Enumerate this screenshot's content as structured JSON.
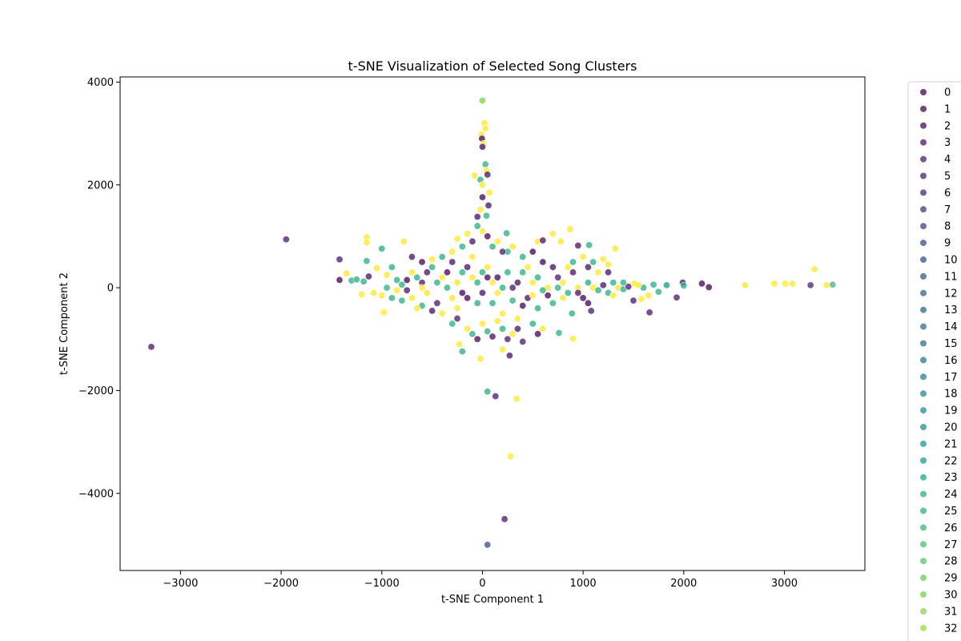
{
  "chart_data": {
    "type": "scatter",
    "title": "t-SNE Visualization of Selected Song Clusters",
    "xlabel": "t-SNE Component 1",
    "ylabel": "t-SNE Component 2",
    "xlim": [
      -3600,
      3800
    ],
    "ylim": [
      -5500,
      4100
    ],
    "xticks": [
      -3000,
      -2000,
      -1000,
      0,
      1000,
      2000,
      3000
    ],
    "yticks": [
      -4000,
      -2000,
      0,
      2000,
      4000
    ],
    "grid": false,
    "legend_placement": "outside right",
    "colormap": "viridis",
    "legend_entries": [
      "0",
      "1",
      "2",
      "3",
      "4",
      "5",
      "6",
      "7",
      "8",
      "9",
      "10",
      "11",
      "12",
      "13",
      "14",
      "15",
      "16",
      "17",
      "18",
      "19",
      "20",
      "21",
      "22",
      "23",
      "24",
      "25",
      "26",
      "27",
      "28",
      "29",
      "30",
      "31",
      "32"
    ],
    "legend_colors": [
      "#440154",
      "#46085c",
      "#471063",
      "#481769",
      "#481d6f",
      "#472575",
      "#462c7b",
      "#443983",
      "#404387",
      "#3e4a89",
      "#3b528b",
      "#375b8d",
      "#34618d",
      "#31688e",
      "#2e6f8e",
      "#2c738e",
      "#297a8e",
      "#26828e",
      "#24878e",
      "#228d8d",
      "#20928c",
      "#1f998a",
      "#1f9f88",
      "#21a685",
      "#26ad81",
      "#2db27d",
      "#3bbb75",
      "#46c06f",
      "#56c667",
      "#6ccd5a",
      "#7ad151",
      "#8bd646",
      "#9dd93b"
    ],
    "points": [
      {
        "x": 0,
        "y": 3640,
        "c": 30
      },
      {
        "x": 20,
        "y": 3200,
        "c": 33
      },
      {
        "x": 30,
        "y": 3100,
        "c": 33
      },
      {
        "x": -10,
        "y": 2980,
        "c": 33
      },
      {
        "x": -5,
        "y": 2900,
        "c": 0
      },
      {
        "x": 10,
        "y": 2800,
        "c": 33
      },
      {
        "x": 0,
        "y": 2740,
        "c": 2
      },
      {
        "x": 30,
        "y": 2400,
        "c": 24
      },
      {
        "x": 40,
        "y": 2280,
        "c": 33
      },
      {
        "x": 50,
        "y": 2200,
        "c": 2
      },
      {
        "x": -80,
        "y": 2180,
        "c": 33
      },
      {
        "x": -20,
        "y": 2100,
        "c": 24
      },
      {
        "x": 0,
        "y": 2000,
        "c": 33
      },
      {
        "x": 70,
        "y": 1850,
        "c": 33
      },
      {
        "x": 0,
        "y": 1760,
        "c": 0
      },
      {
        "x": 60,
        "y": 1600,
        "c": 2
      },
      {
        "x": -20,
        "y": 1520,
        "c": 33
      },
      {
        "x": 40,
        "y": 1400,
        "c": 24
      },
      {
        "x": -50,
        "y": 1380,
        "c": 2
      },
      {
        "x": -1950,
        "y": 940,
        "c": 3
      },
      {
        "x": -1150,
        "y": 980,
        "c": 33
      },
      {
        "x": -1150,
        "y": 880,
        "c": 33
      },
      {
        "x": -1420,
        "y": 550,
        "c": 3
      },
      {
        "x": -3290,
        "y": -1150,
        "c": 3
      },
      {
        "x": 870,
        "y": 1140,
        "c": 33
      },
      {
        "x": 700,
        "y": 1050,
        "c": 33
      },
      {
        "x": 240,
        "y": 1060,
        "c": 24
      },
      {
        "x": -1000,
        "y": 760,
        "c": 24
      },
      {
        "x": -780,
        "y": 900,
        "c": 33
      },
      {
        "x": 1320,
        "y": 760,
        "c": 33
      },
      {
        "x": 1060,
        "y": 830,
        "c": 24
      },
      {
        "x": 950,
        "y": 820,
        "c": 2
      },
      {
        "x": 550,
        "y": 900,
        "c": 33
      },
      {
        "x": 600,
        "y": 920,
        "c": 2
      },
      {
        "x": 780,
        "y": 900,
        "c": 33
      },
      {
        "x": 1200,
        "y": 560,
        "c": 33
      },
      {
        "x": 1250,
        "y": 450,
        "c": 33
      },
      {
        "x": 1050,
        "y": 400,
        "c": 2
      },
      {
        "x": 1150,
        "y": 300,
        "c": 33
      },
      {
        "x": 1300,
        "y": 100,
        "c": 24
      },
      {
        "x": 1510,
        "y": 80,
        "c": 33
      },
      {
        "x": 1700,
        "y": 60,
        "c": 24
      },
      {
        "x": 1830,
        "y": 50,
        "c": 21
      },
      {
        "x": 1990,
        "y": 100,
        "c": 3
      },
      {
        "x": 2000,
        "y": 40,
        "c": 24
      },
      {
        "x": 2180,
        "y": 80,
        "c": 0
      },
      {
        "x": 2250,
        "y": 10,
        "c": 0
      },
      {
        "x": 2610,
        "y": 50,
        "c": 33
      },
      {
        "x": 2900,
        "y": 80,
        "c": 33
      },
      {
        "x": 3010,
        "y": 80,
        "c": 33
      },
      {
        "x": 3080,
        "y": 80,
        "c": 33
      },
      {
        "x": 3260,
        "y": 50,
        "c": 5
      },
      {
        "x": 3300,
        "y": 360,
        "c": 33
      },
      {
        "x": 3420,
        "y": 50,
        "c": 33
      },
      {
        "x": 3480,
        "y": 60,
        "c": 26
      },
      {
        "x": 1930,
        "y": -190,
        "c": 3
      },
      {
        "x": 1660,
        "y": -480,
        "c": 3
      },
      {
        "x": 1580,
        "y": -220,
        "c": 33
      },
      {
        "x": 1500,
        "y": -250,
        "c": 3
      },
      {
        "x": 1080,
        "y": -450,
        "c": 3
      },
      {
        "x": 900,
        "y": -990,
        "c": 33
      },
      {
        "x": 760,
        "y": -880,
        "c": 24
      },
      {
        "x": 890,
        "y": -500,
        "c": 24
      },
      {
        "x": -200,
        "y": -1240,
        "c": 24
      },
      {
        "x": -20,
        "y": -1380,
        "c": 33
      },
      {
        "x": 270,
        "y": -1320,
        "c": 2
      },
      {
        "x": 200,
        "y": -1200,
        "c": 33
      },
      {
        "x": -230,
        "y": -1100,
        "c": 33
      },
      {
        "x": 50,
        "y": -2020,
        "c": 24
      },
      {
        "x": 130,
        "y": -2110,
        "c": 3
      },
      {
        "x": 340,
        "y": -2160,
        "c": 33
      },
      {
        "x": 280,
        "y": -3280,
        "c": 33
      },
      {
        "x": 220,
        "y": -4500,
        "c": 3
      },
      {
        "x": 50,
        "y": -5000,
        "c": 9
      },
      {
        "x": -1350,
        "y": 280,
        "c": 33
      },
      {
        "x": -1300,
        "y": 140,
        "c": 24
      },
      {
        "x": -1250,
        "y": 160,
        "c": 24
      },
      {
        "x": -1200,
        "y": -130,
        "c": 33
      },
      {
        "x": -1130,
        "y": 220,
        "c": 2
      },
      {
        "x": -1150,
        "y": 520,
        "c": 24
      },
      {
        "x": -980,
        "y": -480,
        "c": 33
      },
      {
        "x": -1050,
        "y": 380,
        "c": 33
      },
      {
        "x": -950,
        "y": 250,
        "c": 33
      },
      {
        "x": -900,
        "y": -200,
        "c": 24
      },
      {
        "x": -1080,
        "y": -100,
        "c": 33
      },
      {
        "x": -1420,
        "y": 150,
        "c": 0
      },
      {
        "x": -1180,
        "y": 120,
        "c": 24
      },
      {
        "x": -850,
        "y": 150,
        "c": 24
      },
      {
        "x": -800,
        "y": 60,
        "c": 24
      },
      {
        "x": -750,
        "y": -50,
        "c": 2
      },
      {
        "x": -700,
        "y": 300,
        "c": 33
      },
      {
        "x": -650,
        "y": 200,
        "c": 24
      },
      {
        "x": -600,
        "y": 100,
        "c": 3
      },
      {
        "x": -550,
        "y": -100,
        "c": 33
      },
      {
        "x": -500,
        "y": 400,
        "c": 24
      },
      {
        "x": -450,
        "y": -300,
        "c": 3
      },
      {
        "x": -400,
        "y": 200,
        "c": 33
      },
      {
        "x": -350,
        "y": 0,
        "c": 24
      },
      {
        "x": -300,
        "y": 500,
        "c": 2
      },
      {
        "x": -250,
        "y": -400,
        "c": 33
      },
      {
        "x": -200,
        "y": 300,
        "c": 24
      },
      {
        "x": -150,
        "y": -200,
        "c": 0
      },
      {
        "x": -100,
        "y": 600,
        "c": 33
      },
      {
        "x": -50,
        "y": 100,
        "c": 24
      },
      {
        "x": 0,
        "y": -100,
        "c": 2
      },
      {
        "x": 50,
        "y": 400,
        "c": 33
      },
      {
        "x": 100,
        "y": -300,
        "c": 24
      },
      {
        "x": 150,
        "y": 200,
        "c": 0
      },
      {
        "x": 200,
        "y": -500,
        "c": 33
      },
      {
        "x": 250,
        "y": 700,
        "c": 24
      },
      {
        "x": 300,
        "y": 0,
        "c": 3
      },
      {
        "x": 350,
        "y": -600,
        "c": 33
      },
      {
        "x": 400,
        "y": 300,
        "c": 24
      },
      {
        "x": 450,
        "y": -200,
        "c": 2
      },
      {
        "x": 500,
        "y": 100,
        "c": 33
      },
      {
        "x": 550,
        "y": -400,
        "c": 24
      },
      {
        "x": 600,
        "y": 500,
        "c": 0
      },
      {
        "x": 650,
        "y": 0,
        "c": 33
      },
      {
        "x": 700,
        "y": -300,
        "c": 24
      },
      {
        "x": 750,
        "y": 200,
        "c": 3
      },
      {
        "x": 800,
        "y": 100,
        "c": 33
      },
      {
        "x": 850,
        "y": -100,
        "c": 24
      },
      {
        "x": 900,
        "y": 300,
        "c": 2
      },
      {
        "x": 950,
        "y": 0,
        "c": 33
      },
      {
        "x": 1000,
        "y": -200,
        "c": 0
      },
      {
        "x": 1050,
        "y": 100,
        "c": 24
      },
      {
        "x": 1100,
        "y": 0,
        "c": 33
      },
      {
        "x": 1150,
        "y": -50,
        "c": 24
      },
      {
        "x": 1200,
        "y": 50,
        "c": 2
      },
      {
        "x": 1250,
        "y": -100,
        "c": 24
      },
      {
        "x": 1350,
        "y": 0,
        "c": 33
      },
      {
        "x": 1400,
        "y": -30,
        "c": 24
      },
      {
        "x": 1450,
        "y": 20,
        "c": 3
      },
      {
        "x": 1600,
        "y": 0,
        "c": 24
      },
      {
        "x": 1750,
        "y": -80,
        "c": 24
      },
      {
        "x": 1650,
        "y": -150,
        "c": 33
      },
      {
        "x": -600,
        "y": -350,
        "c": 24
      },
      {
        "x": -700,
        "y": -200,
        "c": 33
      },
      {
        "x": -800,
        "y": -250,
        "c": 24
      },
      {
        "x": -500,
        "y": -450,
        "c": 2
      },
      {
        "x": -400,
        "y": -500,
        "c": 33
      },
      {
        "x": -300,
        "y": -700,
        "c": 24
      },
      {
        "x": -250,
        "y": -600,
        "c": 3
      },
      {
        "x": -150,
        "y": -800,
        "c": 33
      },
      {
        "x": -100,
        "y": -900,
        "c": 24
      },
      {
        "x": -50,
        "y": -1000,
        "c": 0
      },
      {
        "x": 0,
        "y": -700,
        "c": 33
      },
      {
        "x": 50,
        "y": -850,
        "c": 24
      },
      {
        "x": 100,
        "y": -950,
        "c": 2
      },
      {
        "x": 150,
        "y": -650,
        "c": 33
      },
      {
        "x": 200,
        "y": -800,
        "c": 24
      },
      {
        "x": 250,
        "y": -1000,
        "c": 3
      },
      {
        "x": 300,
        "y": -900,
        "c": 33
      },
      {
        "x": 350,
        "y": -800,
        "c": 2
      },
      {
        "x": 400,
        "y": -1050,
        "c": 3
      },
      {
        "x": 500,
        "y": -700,
        "c": 24
      },
      {
        "x": 550,
        "y": -900,
        "c": 0
      },
      {
        "x": 600,
        "y": -800,
        "c": 33
      },
      {
        "x": -600,
        "y": 500,
        "c": 0
      },
      {
        "x": -500,
        "y": 550,
        "c": 33
      },
      {
        "x": -400,
        "y": 600,
        "c": 24
      },
      {
        "x": -300,
        "y": 700,
        "c": 33
      },
      {
        "x": -200,
        "y": 800,
        "c": 24
      },
      {
        "x": -100,
        "y": 900,
        "c": 2
      },
      {
        "x": 0,
        "y": 1100,
        "c": 33
      },
      {
        "x": 50,
        "y": 1000,
        "c": 0
      },
      {
        "x": 100,
        "y": 800,
        "c": 24
      },
      {
        "x": 150,
        "y": 900,
        "c": 33
      },
      {
        "x": 200,
        "y": 700,
        "c": 3
      },
      {
        "x": 300,
        "y": 800,
        "c": 33
      },
      {
        "x": 400,
        "y": 600,
        "c": 24
      },
      {
        "x": 500,
        "y": 700,
        "c": 0
      },
      {
        "x": -250,
        "y": 950,
        "c": 33
      },
      {
        "x": -150,
        "y": 1050,
        "c": 33
      },
      {
        "x": -50,
        "y": 1200,
        "c": 24
      },
      {
        "x": -700,
        "y": 600,
        "c": 2
      },
      {
        "x": -900,
        "y": 400,
        "c": 24
      },
      {
        "x": -950,
        "y": 0,
        "c": 24
      },
      {
        "x": -1000,
        "y": -150,
        "c": 33
      },
      {
        "x": -650,
        "y": -400,
        "c": 33
      },
      {
        "x": -550,
        "y": 300,
        "c": 2
      },
      {
        "x": -450,
        "y": 100,
        "c": 24
      },
      {
        "x": -350,
        "y": 300,
        "c": 0
      },
      {
        "x": -250,
        "y": 100,
        "c": 33
      },
      {
        "x": -150,
        "y": 400,
        "c": 2
      },
      {
        "x": -50,
        "y": -300,
        "c": 24
      },
      {
        "x": 50,
        "y": 200,
        "c": 0
      },
      {
        "x": 150,
        "y": -100,
        "c": 33
      },
      {
        "x": 250,
        "y": 300,
        "c": 24
      },
      {
        "x": 350,
        "y": 100,
        "c": 2
      },
      {
        "x": 450,
        "y": 400,
        "c": 33
      },
      {
        "x": 550,
        "y": 200,
        "c": 24
      },
      {
        "x": 650,
        "y": -150,
        "c": 0
      },
      {
        "x": 750,
        "y": 0,
        "c": 24
      },
      {
        "x": 850,
        "y": 400,
        "c": 33
      },
      {
        "x": 950,
        "y": -100,
        "c": 2
      },
      {
        "x": 1050,
        "y": -300,
        "c": 0
      },
      {
        "x": -100,
        "y": 200,
        "c": 33
      },
      {
        "x": 0,
        "y": 300,
        "c": 24
      },
      {
        "x": 100,
        "y": 100,
        "c": 33
      },
      {
        "x": 200,
        "y": 0,
        "c": 24
      },
      {
        "x": -200,
        "y": -100,
        "c": 0
      },
      {
        "x": -300,
        "y": -200,
        "c": 33
      },
      {
        "x": 300,
        "y": -250,
        "c": 24
      },
      {
        "x": 400,
        "y": -350,
        "c": 0
      },
      {
        "x": 500,
        "y": -150,
        "c": 33
      },
      {
        "x": 600,
        "y": -50,
        "c": 24
      },
      {
        "x": -600,
        "y": 0,
        "c": 33
      },
      {
        "x": -750,
        "y": 150,
        "c": 0
      },
      {
        "x": -850,
        "y": -50,
        "c": 33
      },
      {
        "x": 700,
        "y": 400,
        "c": 2
      },
      {
        "x": 800,
        "y": -200,
        "c": 33
      },
      {
        "x": 900,
        "y": 500,
        "c": 24
      },
      {
        "x": 1000,
        "y": 600,
        "c": 33
      },
      {
        "x": 1100,
        "y": 500,
        "c": 24
      },
      {
        "x": 1250,
        "y": 300,
        "c": 2
      },
      {
        "x": 1300,
        "y": -150,
        "c": 33
      },
      {
        "x": 1400,
        "y": 100,
        "c": 24
      },
      {
        "x": 1550,
        "y": 50,
        "c": 33
      }
    ]
  }
}
